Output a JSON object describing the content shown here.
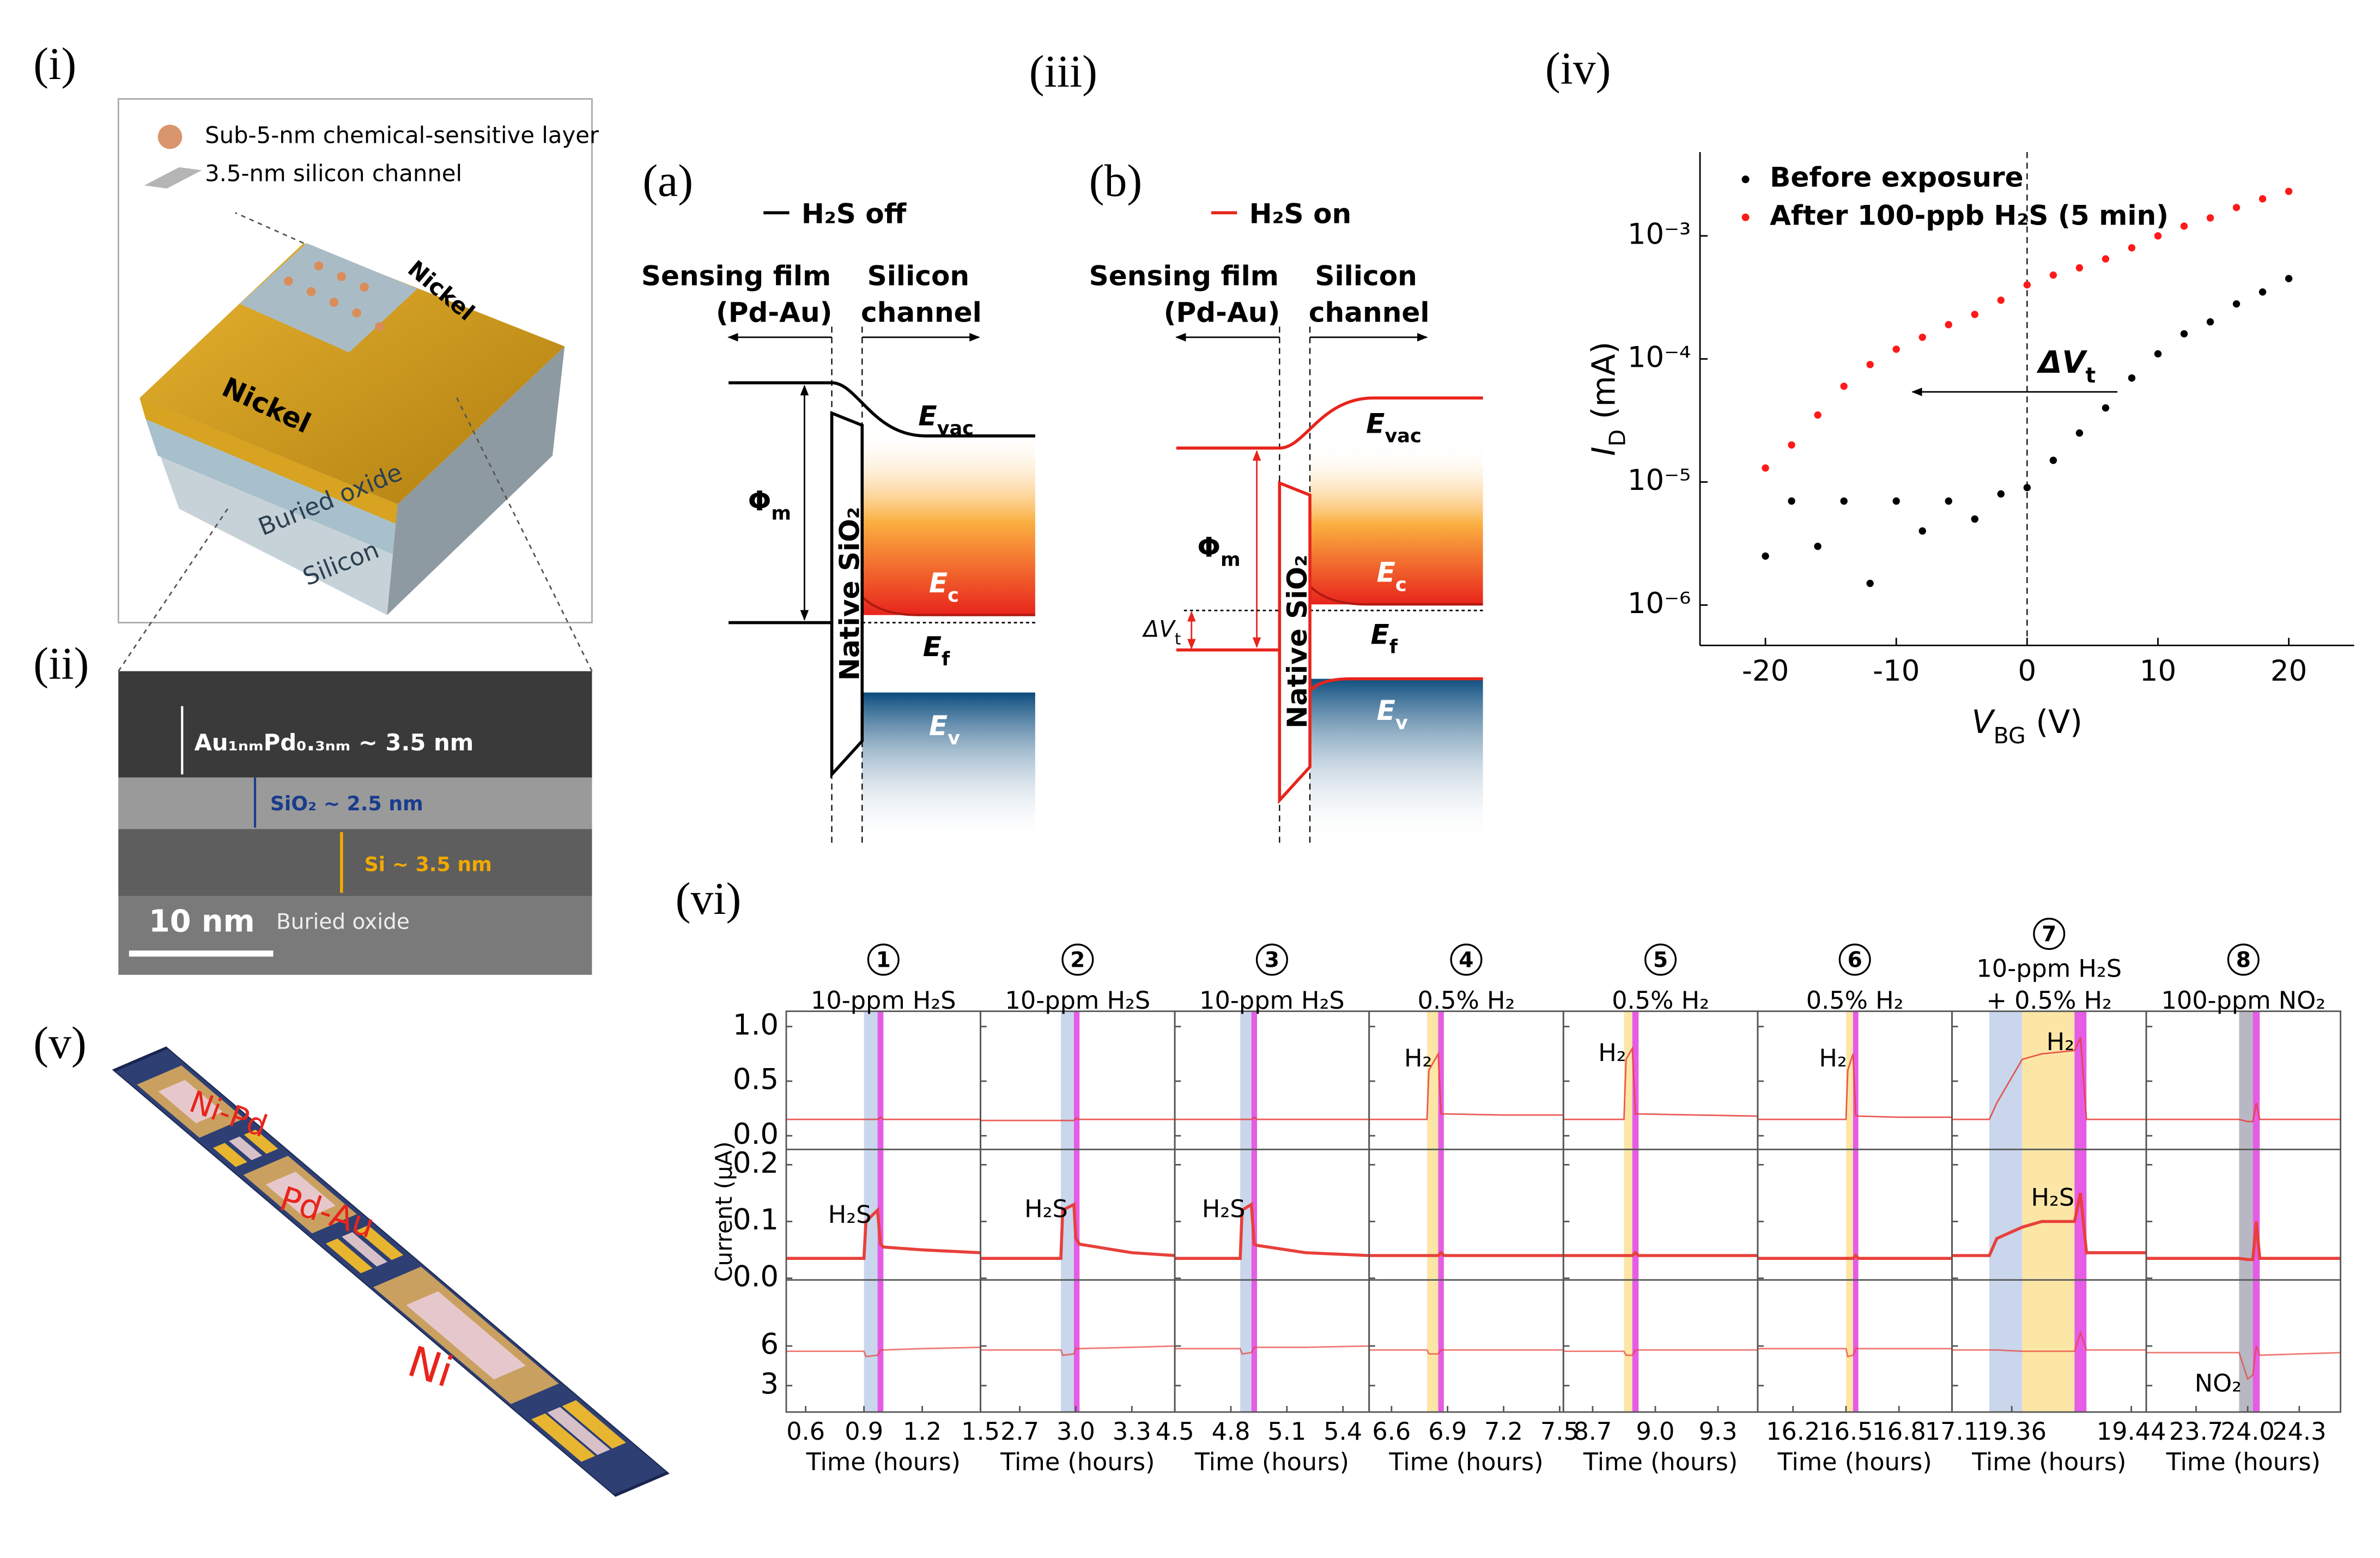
{
  "panel_labels": {
    "i": "(i)",
    "ii": "(ii)",
    "iii": "(iii)",
    "iv": "(iv)",
    "v": "(v)",
    "vi": "(vi)"
  },
  "device": {
    "layer": "Sub-5-nm chemical-sensitive layer",
    "channel": "3.5-nm silicon channel",
    "contacts": [
      "Nickel",
      "Nickel"
    ],
    "oxide": "Buried oxide",
    "substrate": "Silicon"
  },
  "tem": {
    "metal": "Au₁ₙₘPd₀.₃ₙₘ ~ 3.5 nm",
    "oxide": "SiO₂ ~ 2.5 nm",
    "silicon": "Si ~ 3.5 nm",
    "scale_bar": "10 nm",
    "substrate": "Buried oxide"
  },
  "band_diagrams": [
    {
      "tag": "(a)",
      "legend": "H₂S off",
      "color": "#000000",
      "metal": [
        "Sensing film",
        "(Pd-Au)"
      ],
      "semiconductor": [
        "Silicon",
        "channel"
      ],
      "work_function": {
        "symbol": "Φ",
        "sub": "m"
      },
      "oxide": "Native SiO₂",
      "levels": [
        {
          "symbol": "E",
          "sub": "vac"
        },
        {
          "symbol": "E",
          "sub": "c"
        },
        {
          "symbol": "E",
          "sub": "f"
        },
        {
          "symbol": "E",
          "sub": "v"
        }
      ]
    },
    {
      "tag": "(b)",
      "legend": "H₂S on",
      "color": "#e8241c",
      "metal": [
        "Sensing film",
        "(Pd-Au)"
      ],
      "semiconductor": [
        "Silicon",
        "channel"
      ],
      "work_function": {
        "symbol": "Φ",
        "sub": "m"
      },
      "oxide": "Native SiO₂",
      "levels": [
        {
          "symbol": "E",
          "sub": "vac"
        },
        {
          "symbol": "E",
          "sub": "c"
        },
        {
          "symbol": "E",
          "sub": "f"
        },
        {
          "symbol": "E",
          "sub": "v"
        }
      ],
      "shift": {
        "symbol": "ΔV",
        "sub": "t"
      }
    }
  ],
  "chip": {
    "labels": [
      "Ni-Pd",
      "Pd-Au",
      "Ni"
    ]
  },
  "chart_data": [
    {
      "type": "scatter",
      "x_label": {
        "symbol": "V",
        "sub": "BG",
        "unit": " (V)"
      },
      "y_label": {
        "symbol": "I",
        "sub": "D",
        "unit": " (mA)"
      },
      "x": [
        -20,
        -18,
        -16,
        -14,
        -12,
        -10,
        -8,
        -6,
        -4,
        -2,
        0,
        2,
        4,
        6,
        8,
        10,
        12,
        14,
        16,
        18,
        20
      ],
      "series": [
        {
          "name": "Before exposure",
          "color": "#000000",
          "values": [
            2.5e-06,
            7e-06,
            3e-06,
            7e-06,
            1.5e-06,
            7e-06,
            4e-06,
            7e-06,
            5e-06,
            8e-06,
            9e-06,
            1.5e-05,
            2.5e-05,
            4e-05,
            7e-05,
            0.00011,
            0.00016,
            0.0002,
            0.00028,
            0.00035,
            0.00045
          ]
        },
        {
          "name": "After 100-ppb H₂S (5 min)",
          "color": "#ff1a1a",
          "values": [
            1.3e-05,
            2e-05,
            3.5e-05,
            6e-05,
            9e-05,
            0.00012,
            0.00015,
            0.00019,
            0.00023,
            0.0003,
            0.0004,
            0.00048,
            0.00055,
            0.00065,
            0.0008,
            0.001,
            0.0012,
            0.0014,
            0.0017,
            0.002,
            0.0023
          ]
        }
      ],
      "xlim": [
        -25,
        25
      ],
      "xticks": [
        -20,
        -10,
        0,
        10,
        20
      ],
      "ylim": [
        4.7e-07,
        0.0048
      ],
      "yscale": "log",
      "yticks": [
        {
          "value": 1e-06,
          "label": "10⁻⁶"
        },
        {
          "value": 1e-05,
          "label": "10⁻⁵"
        },
        {
          "value": 0.0001,
          "label": "10⁻⁴"
        },
        {
          "value": 0.001,
          "label": "10⁻³"
        }
      ],
      "legend": "upper left",
      "annotation": {
        "symbol": "ΔV",
        "sub": "t"
      }
    },
    {
      "type": "line",
      "y_label": "Current (μA)",
      "x_label": "Time (hours)",
      "color": "#e8403a",
      "rows": [
        {
          "ylim": [
            -0.125,
            1.14
          ],
          "yticks": [
            {
              "value": 0,
              "label": "0.0"
            },
            0.5,
            {
              "value": 1,
              "label": "1.0"
            }
          ]
        },
        {
          "ylim": [
            -0.003,
            0.227
          ],
          "yticks": [
            {
              "value": 0,
              "label": "0.0"
            },
            0.1,
            0.2
          ]
        },
        {
          "ylim": [
            1,
            11
          ],
          "yticks": [
            3,
            6
          ]
        }
      ],
      "panels": [
        {
          "number": "1",
          "title": [
            "10-ppm H₂S"
          ],
          "xlim": [
            0.5,
            1.5
          ],
          "xticks": [
            0.6,
            0.9,
            1.2,
            1.5
          ],
          "bands": [
            {
              "x": [
                0.9,
                0.97
              ],
              "color": "#c9d6ec"
            },
            {
              "x": [
                0.97,
                1.0
              ],
              "color": "#e040e0"
            }
          ],
          "x": [
            0.5,
            0.9,
            0.91,
            0.97,
            0.985,
            1.0,
            1.2,
            1.5
          ],
          "rows": [
            [
              0.15,
              0.15,
              0.15,
              0.15,
              0.17,
              0.15,
              0.15,
              0.15
            ],
            [
              0.035,
              0.035,
              0.1,
              0.12,
              0.06,
              0.055,
              0.05,
              0.045
            ],
            [
              5.6,
              5.6,
              5.2,
              5.3,
              5.7,
              5.7,
              5.8,
              5.9
            ]
          ],
          "annotations": [
            {
              "row": 1,
              "text": "H₂S"
            }
          ]
        },
        {
          "number": "2",
          "title": [
            "10-ppm H₂S"
          ],
          "xlim": [
            2.49,
            3.53
          ],
          "xticks": [
            2.7,
            {
              "value": 3,
              "label": "3.0"
            },
            3.3
          ],
          "bands": [
            {
              "x": [
                2.92,
                2.99
              ],
              "color": "#c9d6ec"
            },
            {
              "x": [
                2.99,
                3.02
              ],
              "color": "#e040e0"
            }
          ],
          "x": [
            2.49,
            2.92,
            2.93,
            2.99,
            3.0,
            3.02,
            3.3,
            3.53
          ],
          "rows": [
            [
              0.14,
              0.14,
              0.14,
              0.14,
              0.16,
              0.15,
              0.15,
              0.15
            ],
            [
              0.035,
              0.035,
              0.12,
              0.13,
              0.07,
              0.06,
              0.045,
              0.04
            ],
            [
              5.7,
              5.7,
              5.3,
              5.4,
              5.8,
              5.8,
              5.9,
              6.0
            ]
          ],
          "annotations": [
            {
              "row": 1,
              "text": "H₂S"
            }
          ]
        },
        {
          "number": "3",
          "title": [
            "10-ppm H₂S"
          ],
          "xlim": [
            4.5,
            5.54
          ],
          "xticks": [
            4.5,
            4.8,
            5.1,
            5.4
          ],
          "bands": [
            {
              "x": [
                4.85,
                4.91
              ],
              "color": "#c9d6ec"
            },
            {
              "x": [
                4.91,
                4.94
              ],
              "color": "#e040e0"
            }
          ],
          "x": [
            4.5,
            4.85,
            4.86,
            4.91,
            4.925,
            4.94,
            5.2,
            5.54
          ],
          "rows": [
            [
              0.15,
              0.15,
              0.15,
              0.15,
              0.17,
              0.15,
              0.15,
              0.15
            ],
            [
              0.035,
              0.035,
              0.12,
              0.13,
              0.06,
              0.058,
              0.045,
              0.04
            ],
            [
              5.8,
              5.8,
              5.4,
              5.5,
              5.9,
              5.9,
              5.9,
              6.0
            ]
          ],
          "annotations": [
            {
              "row": 1,
              "text": "H₂S"
            }
          ]
        },
        {
          "number": "4",
          "title": [
            "0.5% H₂"
          ],
          "xlim": [
            6.48,
            7.52
          ],
          "xticks": [
            6.6,
            6.9,
            7.2,
            7.5
          ],
          "bands": [
            {
              "x": [
                6.79,
                6.85
              ],
              "color": "#fbe6a6"
            },
            {
              "x": [
                6.85,
                6.88
              ],
              "color": "#e040e0"
            }
          ],
          "x": [
            6.48,
            6.79,
            6.8,
            6.85,
            6.865,
            6.88,
            7.2,
            7.52
          ],
          "rows": [
            [
              0.15,
              0.15,
              0.6,
              0.75,
              0.2,
              0.2,
              0.19,
              0.19
            ],
            [
              0.04,
              0.04,
              0.04,
              0.04,
              0.045,
              0.04,
              0.04,
              0.04
            ],
            [
              5.7,
              5.7,
              5.4,
              5.4,
              5.7,
              5.7,
              5.7,
              5.7
            ]
          ],
          "annotations": [
            {
              "row": 0,
              "text": "H₂"
            }
          ]
        },
        {
          "number": "5",
          "title": [
            "0.5% H₂"
          ],
          "xlim": [
            8.56,
            9.49
          ],
          "xticks": [
            8.7,
            {
              "value": 9,
              "label": "9.0"
            },
            9.3
          ],
          "bands": [
            {
              "x": [
                8.85,
                8.89
              ],
              "color": "#fbe6a6"
            },
            {
              "x": [
                8.89,
                8.92
              ],
              "color": "#e040e0"
            }
          ],
          "x": [
            8.56,
            8.85,
            8.86,
            8.89,
            8.905,
            8.92,
            9.2,
            9.49
          ],
          "rows": [
            [
              0.15,
              0.15,
              0.7,
              0.8,
              0.2,
              0.2,
              0.19,
              0.18
            ],
            [
              0.04,
              0.04,
              0.04,
              0.04,
              0.045,
              0.04,
              0.04,
              0.04
            ],
            [
              5.6,
              5.6,
              5.3,
              5.3,
              5.7,
              5.7,
              5.7,
              5.7
            ]
          ],
          "annotations": [
            {
              "row": 0,
              "text": "H₂"
            }
          ]
        },
        {
          "number": "6",
          "title": [
            "0.5% H₂"
          ],
          "xlim": [
            16.0,
            17.1
          ],
          "xticks": [
            16.2,
            16.5,
            16.8,
            17.1
          ],
          "bands": [
            {
              "x": [
                16.5,
                16.54
              ],
              "color": "#fbe6a6"
            },
            {
              "x": [
                16.54,
                16.57
              ],
              "color": "#e040e0"
            }
          ],
          "x": [
            16.0,
            16.5,
            16.51,
            16.54,
            16.555,
            16.57,
            16.8,
            17.1
          ],
          "rows": [
            [
              0.15,
              0.15,
              0.6,
              0.75,
              0.19,
              0.18,
              0.17,
              0.17
            ],
            [
              0.035,
              0.035,
              0.035,
              0.035,
              0.04,
              0.035,
              0.035,
              0.035
            ],
            [
              5.8,
              5.8,
              5.2,
              5.3,
              5.8,
              5.8,
              5.8,
              5.8
            ]
          ],
          "annotations": [
            {
              "row": 0,
              "text": "H₂"
            }
          ]
        },
        {
          "number": "7",
          "title": [
            "10-ppm H₂S",
            "+ 0.5% H₂"
          ],
          "xlim": [
            19.32,
            19.45
          ],
          "xticks": [
            19.36,
            19.44
          ],
          "bands": [
            {
              "x": [
                19.345,
                19.367
              ],
              "color": "#c9d6ec"
            },
            {
              "x": [
                19.367,
                19.402
              ],
              "color": "#fbe6a6"
            },
            {
              "x": [
                19.402,
                19.41
              ],
              "color": "#e040e0"
            }
          ],
          "x": [
            19.32,
            19.345,
            19.35,
            19.367,
            19.38,
            19.402,
            19.406,
            19.41,
            19.45
          ],
          "rows": [
            [
              0.15,
              0.15,
              0.3,
              0.7,
              0.75,
              0.78,
              0.9,
              0.15,
              0.15
            ],
            [
              0.04,
              0.04,
              0.07,
              0.09,
              0.1,
              0.1,
              0.15,
              0.045,
              0.045
            ],
            [
              5.7,
              5.7,
              5.7,
              5.6,
              5.6,
              5.6,
              7.0,
              5.7,
              5.7
            ]
          ],
          "annotations": [
            {
              "row": 0,
              "text": "H₂"
            },
            {
              "row": 1,
              "text": "H₂S"
            }
          ]
        },
        {
          "number": "8",
          "title": [
            "100-ppm NO₂"
          ],
          "xlim": [
            23.41,
            24.54
          ],
          "xticks": [
            23.7,
            {
              "value": 24,
              "label": "24.0"
            },
            24.3
          ],
          "bands": [
            {
              "x": [
                23.95,
                24.03
              ],
              "color": "#b8b8c4"
            },
            {
              "x": [
                24.03,
                24.07
              ],
              "color": "#e040e0"
            }
          ],
          "x": [
            23.41,
            23.95,
            24.0,
            24.03,
            24.05,
            24.07,
            24.3,
            24.54
          ],
          "rows": [
            [
              0.15,
              0.15,
              0.13,
              0.13,
              0.3,
              0.15,
              0.15,
              0.15
            ],
            [
              0.035,
              0.035,
              0.033,
              0.033,
              0.1,
              0.035,
              0.035,
              0.035
            ],
            [
              5.5,
              5.5,
              3.5,
              3.8,
              6.0,
              5.3,
              5.4,
              5.5
            ]
          ],
          "annotations": [
            {
              "row": 2,
              "text": "NO₂"
            }
          ]
        }
      ]
    }
  ]
}
